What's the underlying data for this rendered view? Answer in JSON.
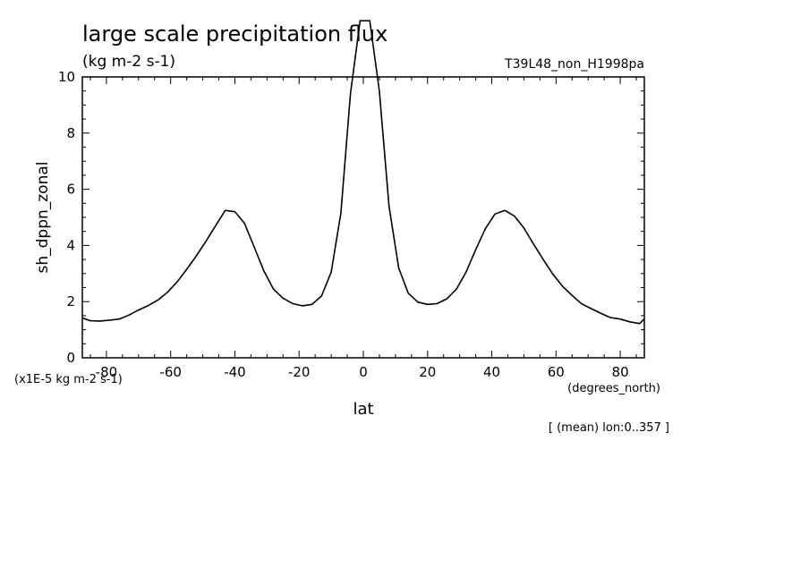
{
  "chart_data": {
    "type": "line",
    "title": "large scale precipitation flux",
    "subtitle": "(kg m-2 s-1)",
    "experiment": "T39L48_non_H1998pa",
    "xlabel": "lat",
    "xunits": "(degrees_north)",
    "ylabel": "sh_dppn_zonal",
    "yscale_note": "(x1E-5 kg m-2 s-1)",
    "footnote": "[ (mean) lon:0..357 ]",
    "xlim": [
      -87.5,
      87.5
    ],
    "ylim": [
      0,
      10
    ],
    "x_ticks": [
      -80,
      -60,
      -40,
      -20,
      0,
      20,
      40,
      60,
      80
    ],
    "x_tick_labels": [
      "-80",
      "-60",
      "-40",
      "-20",
      "0",
      "20",
      "40",
      "60",
      "80"
    ],
    "y_ticks": [
      0,
      2,
      4,
      6,
      8,
      10
    ],
    "y_tick_labels": [
      "0",
      "2",
      "4",
      "6",
      "8",
      "10"
    ],
    "grid": false,
    "series": [
      {
        "x": [
          -87.5,
          -85,
          -82,
          -79,
          -76,
          -73,
          -70,
          -67,
          -64,
          -61,
          -58,
          -55,
          -52,
          -49,
          -46,
          -43,
          -40,
          -37,
          -34,
          -31,
          -28,
          -25,
          -22,
          -19,
          -16,
          -13,
          -10,
          -7,
          -4,
          -1,
          2,
          5,
          8,
          11,
          14,
          17,
          20,
          23,
          26,
          29,
          32,
          35,
          38,
          41,
          44,
          47,
          50,
          53,
          56,
          59,
          62,
          65,
          68,
          71,
          74,
          77,
          80,
          83,
          86,
          87.5
        ],
        "values": [
          1.42,
          1.32,
          1.31,
          1.34,
          1.38,
          1.52,
          1.7,
          1.86,
          2.05,
          2.33,
          2.7,
          3.15,
          3.63,
          4.15,
          4.7,
          5.25,
          5.2,
          4.79,
          3.95,
          3.1,
          2.45,
          2.12,
          1.93,
          1.85,
          1.9,
          2.2,
          3.05,
          5.15,
          9.4,
          12.0,
          12.0,
          9.5,
          5.4,
          3.2,
          2.3,
          1.98,
          1.9,
          1.93,
          2.1,
          2.45,
          3.05,
          3.85,
          4.6,
          5.12,
          5.25,
          5.05,
          4.62,
          4.05,
          3.5,
          2.98,
          2.55,
          2.22,
          1.92,
          1.75,
          1.58,
          1.43,
          1.38,
          1.28,
          1.22,
          1.38
        ]
      }
    ]
  }
}
